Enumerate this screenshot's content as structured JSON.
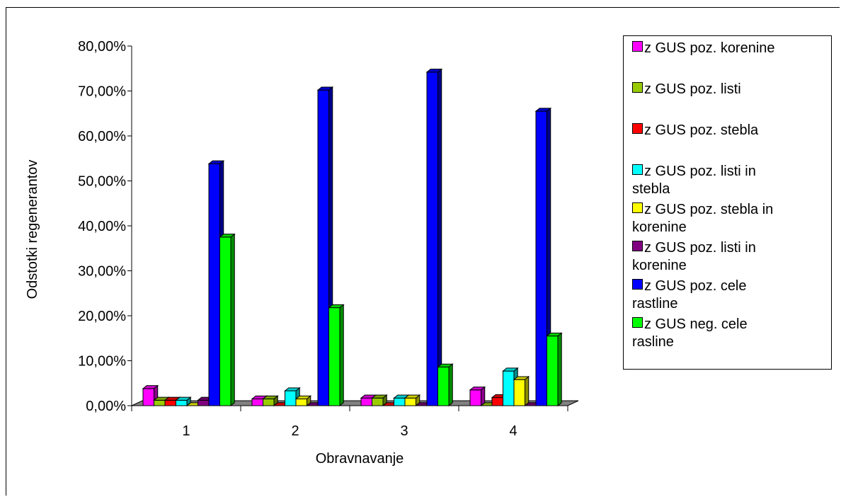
{
  "chart_data": {
    "type": "bar",
    "style": "3d-clustered-column",
    "title": "",
    "xlabel": "Obravnavanje",
    "ylabel": "Odstotki regenerantov",
    "categories": [
      "1",
      "2",
      "3",
      "4"
    ],
    "y_ticks": [
      "0,00%",
      "10,00%",
      "20,00%",
      "30,00%",
      "40,00%",
      "50,00%",
      "60,00%",
      "70,00%",
      "80,00%"
    ],
    "ylim": [
      0,
      80
    ],
    "grid": false,
    "legend_position": "right",
    "series": [
      {
        "name": "z GUS poz. korenine",
        "color": "#ff00ff",
        "values": [
          3.8,
          1.5,
          1.7,
          3.5
        ]
      },
      {
        "name": "z GUS poz. listi",
        "color": "#99cc00",
        "values": [
          1.2,
          1.5,
          1.7,
          0.0
        ]
      },
      {
        "name": "z GUS poz. stebla",
        "color": "#ff0000",
        "values": [
          1.2,
          0.0,
          0.0,
          1.8
        ]
      },
      {
        "name": "z GUS poz. listi in stebla",
        "color": "#00ffff",
        "values": [
          1.2,
          3.3,
          1.7,
          7.7
        ]
      },
      {
        "name": "z GUS poz. stebla in korenine",
        "color": "#ffff00",
        "values": [
          0.0,
          1.5,
          1.7,
          5.8
        ]
      },
      {
        "name": "z GUS poz. listi in korenine",
        "color": "#800080",
        "values": [
          1.2,
          0.0,
          0.0,
          0.0
        ]
      },
      {
        "name": "z GUS poz. cele rastline",
        "color": "#0000ff",
        "values": [
          53.8,
          70.2,
          74.2,
          65.5
        ]
      },
      {
        "name": "z GUS neg. cele rasline",
        "color": "#00ff00",
        "values": [
          37.5,
          21.8,
          8.6,
          15.5
        ]
      }
    ],
    "legend_lines": [
      [
        "z GUS poz. korenine"
      ],
      [
        "z GUS poz. listi"
      ],
      [
        "z GUS poz. stebla"
      ],
      [
        "z GUS poz. listi in",
        "stebla"
      ],
      [
        "z GUS poz. stebla in",
        "korenine"
      ],
      [
        "z GUS poz. listi in",
        "korenine"
      ],
      [
        "z GUS poz. cele",
        "rastline"
      ],
      [
        "z GUS neg. cele",
        "rasline"
      ]
    ]
  }
}
